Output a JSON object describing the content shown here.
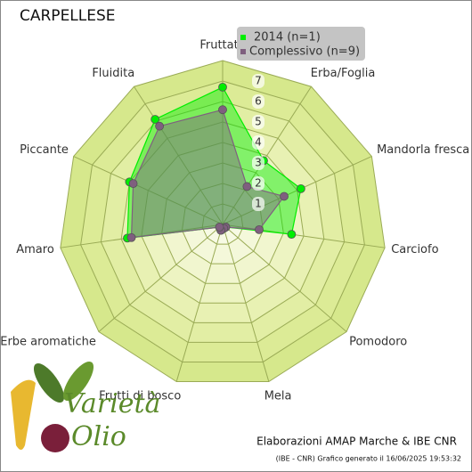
{
  "chart_data": {
    "type": "radar",
    "title": "CARPELLESE",
    "categories": [
      "Fruttato",
      "Erba/Foglia",
      "Mandorla fresca",
      "Carciofo",
      "Pomodoro",
      "Mela",
      "Frutti di bosco",
      "Erbe aromatiche",
      "Amaro",
      "Piccante",
      "Fluidita"
    ],
    "series": [
      {
        "name": "2014 (n=1)",
        "color": "#00ee00",
        "values": [
          6.7,
          3.7,
          4.2,
          3.4,
          0.2,
          0.2,
          0.3,
          0.2,
          4.7,
          5.0,
          6.1
        ]
      },
      {
        "name": "Complessivo (n=9)",
        "color": "#7f5f7f",
        "values": [
          5.6,
          2.2,
          3.3,
          1.8,
          0.2,
          0.2,
          0.3,
          0.2,
          4.5,
          4.8,
          5.7
        ]
      }
    ],
    "ylim": [
      0,
      8
    ],
    "yticks": [
      1,
      2,
      3,
      4,
      5,
      6,
      7
    ],
    "grid": true,
    "footer": "Elaborazioni AMAP Marche & IBE CNR",
    "generated": "(IBE - CNR) Grafico generato il 16/06/2025 19:53:32",
    "logo": [
      "Varietà",
      "Olio"
    ]
  }
}
